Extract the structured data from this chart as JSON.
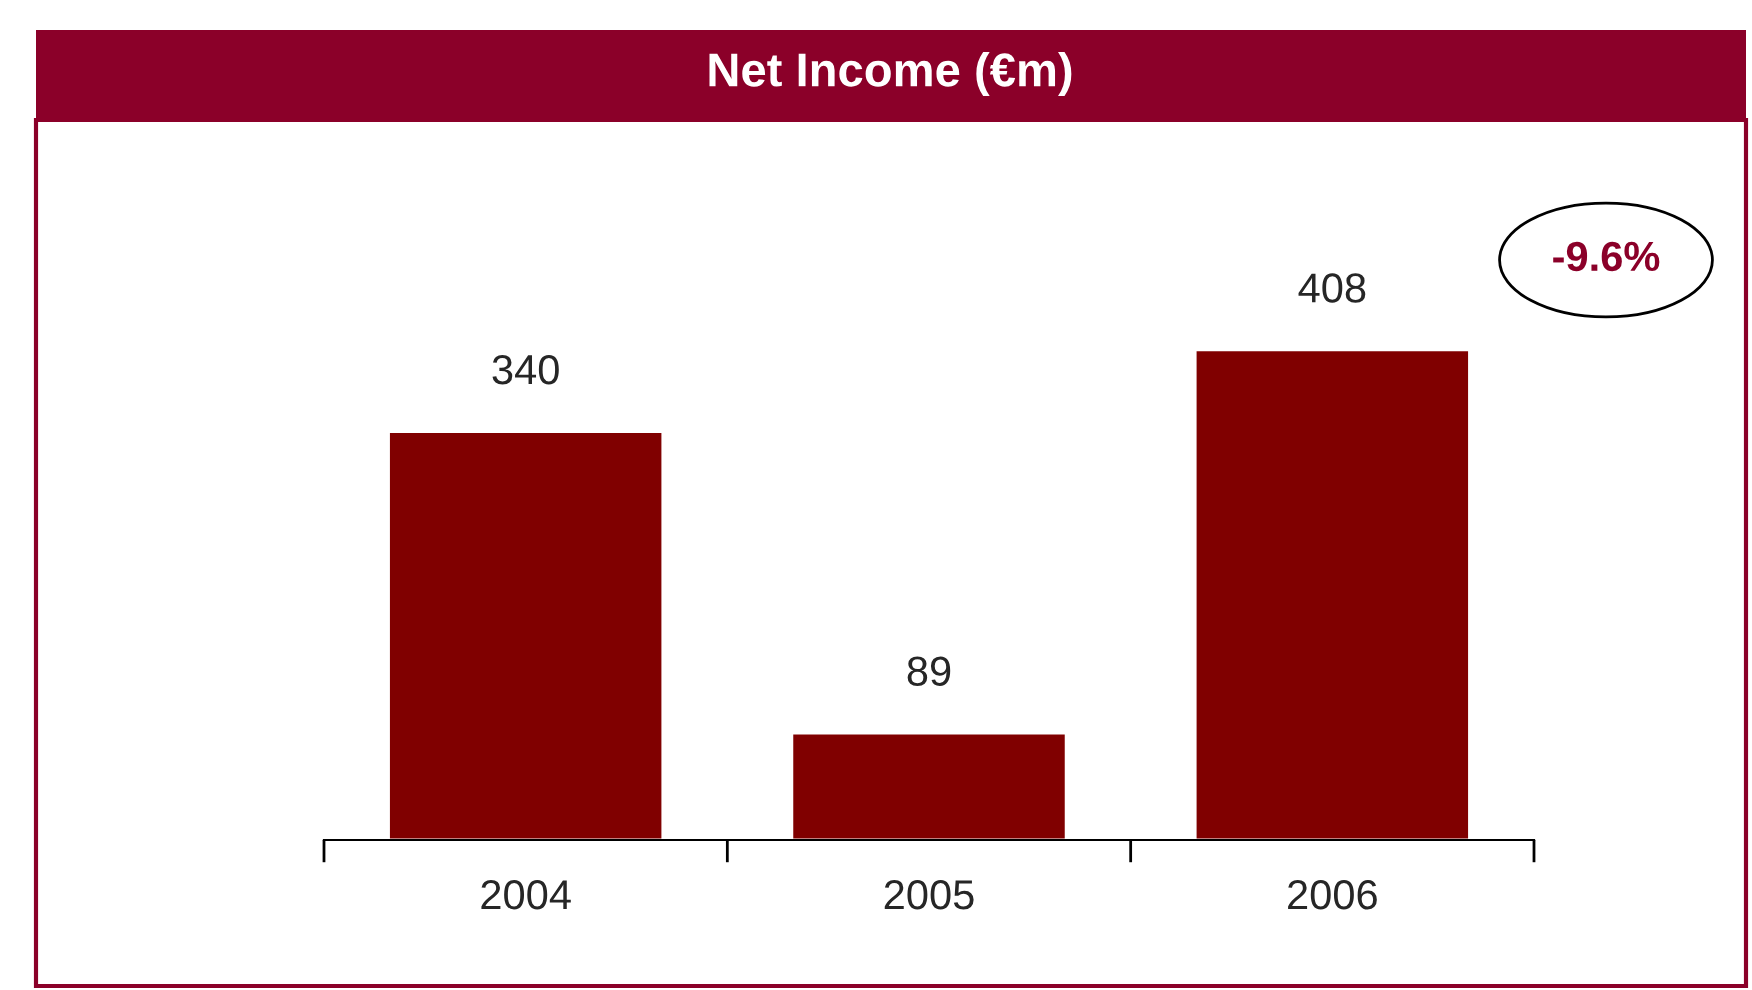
{
  "chart_data": {
    "type": "bar",
    "title": "Net Income (€m)",
    "categories": [
      "2004",
      "2005",
      "2006"
    ],
    "values": [
      340,
      89,
      408
    ],
    "color": "#800000",
    "data_labels": true,
    "annotations": [
      "-9.6%"
    ],
    "grid": false,
    "legend": false
  }
}
